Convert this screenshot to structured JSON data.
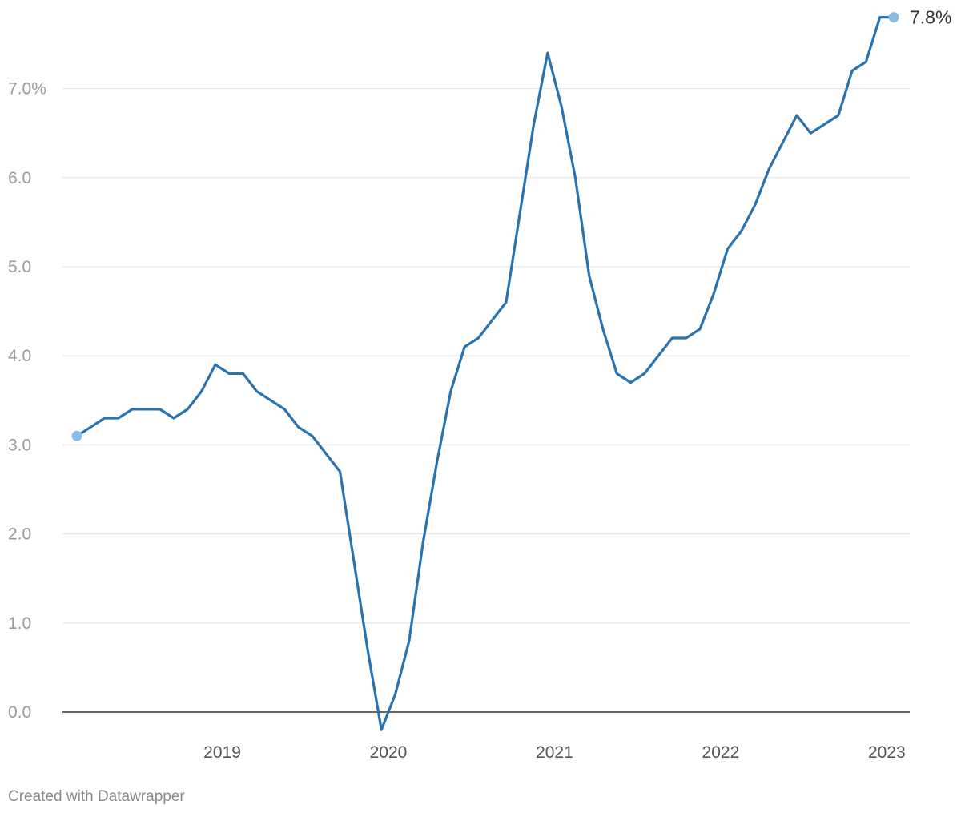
{
  "chart_data": {
    "type": "line",
    "title": "",
    "xlabel": "",
    "ylabel": "",
    "grid": true,
    "ylim": [
      -0.2,
      7.8
    ],
    "y_ticks": [
      {
        "value": 7.0,
        "label": "7.0%"
      },
      {
        "value": 6.0,
        "label": "6.0"
      },
      {
        "value": 5.0,
        "label": "5.0"
      },
      {
        "value": 4.0,
        "label": "4.0"
      },
      {
        "value": 3.0,
        "label": "3.0"
      },
      {
        "value": 2.0,
        "label": "2.0"
      },
      {
        "value": 1.0,
        "label": "1.0"
      },
      {
        "value": 0.0,
        "label": "0.0"
      }
    ],
    "x_ticks": [
      {
        "value": 2019,
        "label": "2019"
      },
      {
        "value": 2020,
        "label": "2020"
      },
      {
        "value": 2021,
        "label": "2021"
      },
      {
        "value": 2022,
        "label": "2022"
      },
      {
        "value": 2023,
        "label": "2023"
      }
    ],
    "xlim": [
      "2018-08",
      "2023-07"
    ],
    "end_label": "7.8%",
    "series": [
      {
        "color": "#2873b0",
        "points": [
          [
            "2018-08",
            3.1
          ],
          [
            "2018-09",
            3.2
          ],
          [
            "2018-10",
            3.3
          ],
          [
            "2018-11",
            3.3
          ],
          [
            "2018-12",
            3.4
          ],
          [
            "2019-01",
            3.4
          ],
          [
            "2019-02",
            3.4
          ],
          [
            "2019-03",
            3.3
          ],
          [
            "2019-04",
            3.4
          ],
          [
            "2019-05",
            3.6
          ],
          [
            "2019-06",
            3.9
          ],
          [
            "2019-07",
            3.8
          ],
          [
            "2019-08",
            3.8
          ],
          [
            "2019-09",
            3.6
          ],
          [
            "2019-10",
            3.5
          ],
          [
            "2019-11",
            3.4
          ],
          [
            "2019-12",
            3.2
          ],
          [
            "2020-01",
            3.1
          ],
          [
            "2020-02",
            2.9
          ],
          [
            "2020-03",
            2.7
          ],
          [
            "2020-04",
            1.7
          ],
          [
            "2020-05",
            0.7
          ],
          [
            "2020-06",
            -0.2
          ],
          [
            "2020-07",
            0.2
          ],
          [
            "2020-08",
            0.8
          ],
          [
            "2020-09",
            1.9
          ],
          [
            "2020-10",
            2.8
          ],
          [
            "2020-11",
            3.6
          ],
          [
            "2020-12",
            4.1
          ],
          [
            "2021-01",
            4.2
          ],
          [
            "2021-02",
            4.4
          ],
          [
            "2021-03",
            4.6
          ],
          [
            "2021-04",
            5.6
          ],
          [
            "2021-05",
            6.6
          ],
          [
            "2021-06",
            7.4
          ],
          [
            "2021-07",
            6.8
          ],
          [
            "2021-08",
            6.0
          ],
          [
            "2021-09",
            4.9
          ],
          [
            "2021-10",
            4.3
          ],
          [
            "2021-11",
            3.8
          ],
          [
            "2021-12",
            3.7
          ],
          [
            "2022-01",
            3.8
          ],
          [
            "2022-02",
            4.0
          ],
          [
            "2022-03",
            4.2
          ],
          [
            "2022-04",
            4.2
          ],
          [
            "2022-05",
            4.3
          ],
          [
            "2022-06",
            4.7
          ],
          [
            "2022-07",
            5.2
          ],
          [
            "2022-08",
            5.4
          ],
          [
            "2022-09",
            5.7
          ],
          [
            "2022-10",
            6.1
          ],
          [
            "2022-11",
            6.4
          ],
          [
            "2022-12",
            6.7
          ],
          [
            "2023-01",
            6.5
          ],
          [
            "2023-02",
            6.6
          ],
          [
            "2023-03",
            6.7
          ],
          [
            "2023-04",
            7.2
          ],
          [
            "2023-05",
            7.3
          ],
          [
            "2023-06",
            7.8
          ],
          [
            "2023-07",
            7.8
          ]
        ]
      }
    ]
  },
  "footer": {
    "credit": "Created with Datawrapper"
  },
  "colors": {
    "line": "#2873b0",
    "endpoint_dot": "#8fbbe2",
    "gridline": "#e0e0e0",
    "baseline": "#333333"
  }
}
